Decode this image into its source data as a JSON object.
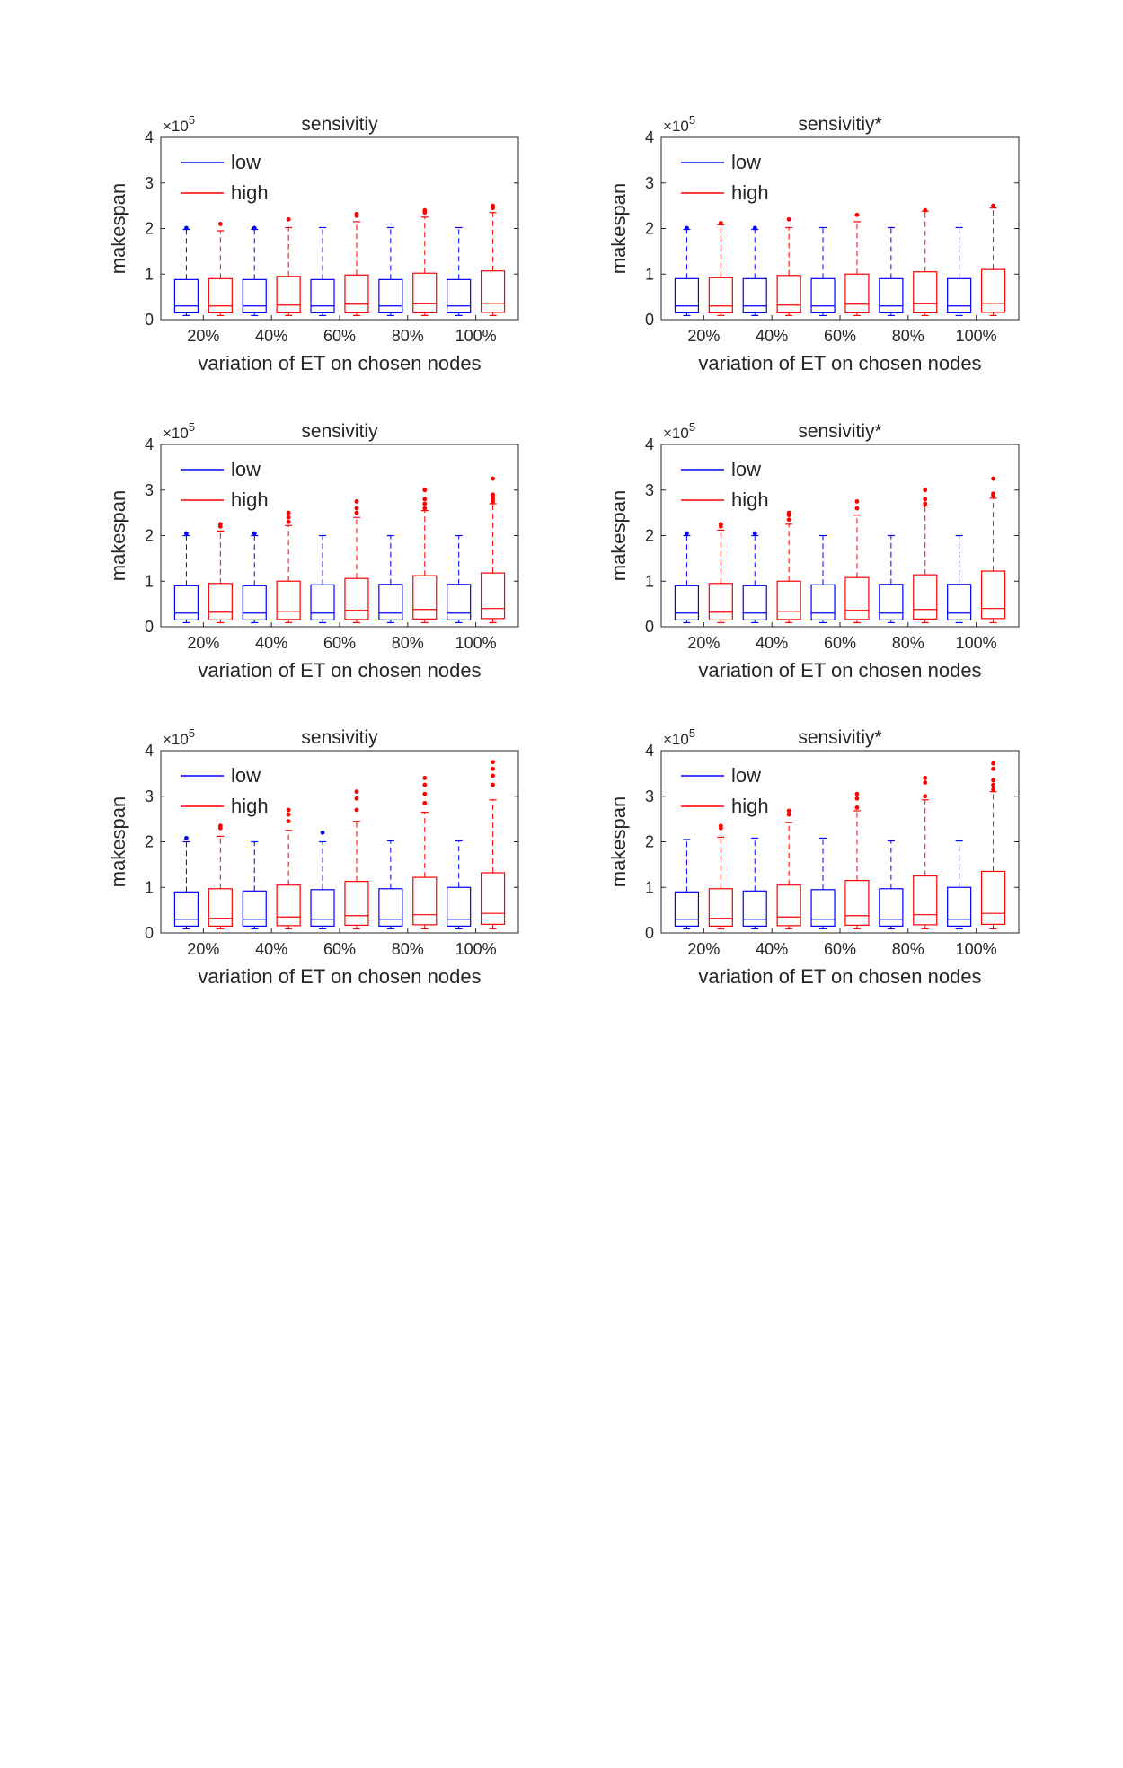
{
  "panels": [
    {
      "type": "box",
      "title": "sensivitiy",
      "ylabel": "makespan",
      "xlabel": "variation of ET on chosen nodes",
      "y_exponent": "×10",
      "y_exponent_power": "5",
      "ylim": [
        0,
        4
      ],
      "yticks": [
        "0",
        "1",
        "2",
        "3",
        "4"
      ],
      "legend": {
        "placement": "top-left",
        "entries": [
          {
            "label": "low",
            "color": "#0000ff"
          },
          {
            "label": "high",
            "color": "#ff0000"
          }
        ]
      },
      "categories": [
        "20%",
        "40%",
        "60%",
        "80%",
        "100%"
      ],
      "boxes": [
        {
          "series": "low",
          "position": 1,
          "min": 0.09,
          "q1": 0.15,
          "median": 0.3,
          "q3": 0.88,
          "whisker_high": 1.98,
          "outliers": [
            2.01
          ]
        },
        {
          "series": "high",
          "position": 2,
          "min": 0.09,
          "q1": 0.15,
          "median": 0.3,
          "q3": 0.9,
          "whisker_high": 1.95,
          "outliers": [
            2.1
          ]
        },
        {
          "series": "low",
          "position": 3,
          "min": 0.09,
          "q1": 0.15,
          "median": 0.3,
          "q3": 0.88,
          "whisker_high": 1.98,
          "outliers": [
            2.01
          ]
        },
        {
          "series": "high",
          "position": 4,
          "min": 0.09,
          "q1": 0.15,
          "median": 0.32,
          "q3": 0.95,
          "whisker_high": 2.02,
          "outliers": [
            2.2
          ]
        },
        {
          "series": "low",
          "position": 5,
          "min": 0.09,
          "q1": 0.15,
          "median": 0.3,
          "q3": 0.88,
          "whisker_high": 2.02,
          "outliers": []
        },
        {
          "series": "high",
          "position": 6,
          "min": 0.09,
          "q1": 0.15,
          "median": 0.34,
          "q3": 0.98,
          "whisker_high": 2.15,
          "outliers": [
            2.28,
            2.32
          ]
        },
        {
          "series": "low",
          "position": 7,
          "min": 0.09,
          "q1": 0.15,
          "median": 0.3,
          "q3": 0.88,
          "whisker_high": 2.02,
          "outliers": []
        },
        {
          "series": "high",
          "position": 8,
          "min": 0.09,
          "q1": 0.15,
          "median": 0.35,
          "q3": 1.02,
          "whisker_high": 2.25,
          "outliers": [
            2.35,
            2.4
          ]
        },
        {
          "series": "low",
          "position": 9,
          "min": 0.09,
          "q1": 0.15,
          "median": 0.3,
          "q3": 0.88,
          "whisker_high": 2.02,
          "outliers": []
        },
        {
          "series": "high",
          "position": 10,
          "min": 0.09,
          "q1": 0.16,
          "median": 0.36,
          "q3": 1.07,
          "whisker_high": 2.35,
          "outliers": [
            2.45,
            2.5
          ]
        }
      ]
    },
    {
      "type": "box",
      "title": "sensivitiy*",
      "ylabel": "makespan",
      "xlabel": "variation of ET on chosen nodes",
      "y_exponent": "×10",
      "y_exponent_power": "5",
      "ylim": [
        0,
        4
      ],
      "yticks": [
        "0",
        "1",
        "2",
        "3",
        "4"
      ],
      "legend": {
        "placement": "top-left",
        "entries": [
          {
            "label": "low",
            "color": "#0000ff"
          },
          {
            "label": "high",
            "color": "#ff0000"
          }
        ]
      },
      "categories": [
        "20%",
        "40%",
        "60%",
        "80%",
        "100%"
      ],
      "boxes": [
        {
          "series": "low",
          "position": 1,
          "min": 0.09,
          "q1": 0.15,
          "median": 0.3,
          "q3": 0.9,
          "whisker_high": 1.98,
          "outliers": [
            2.01
          ]
        },
        {
          "series": "high",
          "position": 2,
          "min": 0.09,
          "q1": 0.15,
          "median": 0.3,
          "q3": 0.92,
          "whisker_high": 2.08,
          "outliers": [
            2.12
          ]
        },
        {
          "series": "low",
          "position": 3,
          "min": 0.09,
          "q1": 0.15,
          "median": 0.3,
          "q3": 0.9,
          "whisker_high": 1.98,
          "outliers": [
            2.01
          ]
        },
        {
          "series": "high",
          "position": 4,
          "min": 0.09,
          "q1": 0.15,
          "median": 0.32,
          "q3": 0.97,
          "whisker_high": 2.02,
          "outliers": [
            2.2
          ]
        },
        {
          "series": "low",
          "position": 5,
          "min": 0.09,
          "q1": 0.15,
          "median": 0.3,
          "q3": 0.9,
          "whisker_high": 2.02,
          "outliers": []
        },
        {
          "series": "high",
          "position": 6,
          "min": 0.09,
          "q1": 0.15,
          "median": 0.34,
          "q3": 1.0,
          "whisker_high": 2.15,
          "outliers": [
            2.3
          ]
        },
        {
          "series": "low",
          "position": 7,
          "min": 0.09,
          "q1": 0.15,
          "median": 0.3,
          "q3": 0.9,
          "whisker_high": 2.02,
          "outliers": []
        },
        {
          "series": "high",
          "position": 8,
          "min": 0.09,
          "q1": 0.15,
          "median": 0.35,
          "q3": 1.05,
          "whisker_high": 2.38,
          "outliers": [
            2.4
          ]
        },
        {
          "series": "low",
          "position": 9,
          "min": 0.09,
          "q1": 0.15,
          "median": 0.3,
          "q3": 0.9,
          "whisker_high": 2.02,
          "outliers": []
        },
        {
          "series": "high",
          "position": 10,
          "min": 0.09,
          "q1": 0.16,
          "median": 0.36,
          "q3": 1.1,
          "whisker_high": 2.45,
          "outliers": [
            2.5
          ]
        }
      ]
    },
    {
      "type": "box",
      "title": "sensivitiy",
      "ylabel": "makespan",
      "xlabel": "variation of ET on chosen nodes",
      "y_exponent": "×10",
      "y_exponent_power": "5",
      "ylim": [
        0,
        4
      ],
      "yticks": [
        "0",
        "1",
        "2",
        "3",
        "4"
      ],
      "legend": {
        "placement": "top-left",
        "entries": [
          {
            "label": "low",
            "color": "#0000ff"
          },
          {
            "label": "high",
            "color": "#ff0000"
          }
        ]
      },
      "categories": [
        "20%",
        "40%",
        "60%",
        "80%",
        "100%"
      ],
      "boxes": [
        {
          "series": "low",
          "position": 1,
          "min": 0.09,
          "q1": 0.15,
          "median": 0.3,
          "q3": 0.9,
          "whisker_high": 2.0,
          "outliers": [
            2.05
          ]
        },
        {
          "series": "high",
          "position": 2,
          "min": 0.09,
          "q1": 0.15,
          "median": 0.32,
          "q3": 0.95,
          "whisker_high": 2.1,
          "outliers": [
            2.2,
            2.25
          ]
        },
        {
          "series": "low",
          "position": 3,
          "min": 0.09,
          "q1": 0.15,
          "median": 0.3,
          "q3": 0.9,
          "whisker_high": 2.0,
          "outliers": [
            2.05
          ]
        },
        {
          "series": "high",
          "position": 4,
          "min": 0.09,
          "q1": 0.16,
          "median": 0.34,
          "q3": 1.0,
          "whisker_high": 2.22,
          "outliers": [
            2.3,
            2.4,
            2.5
          ]
        },
        {
          "series": "low",
          "position": 5,
          "min": 0.09,
          "q1": 0.15,
          "median": 0.3,
          "q3": 0.92,
          "whisker_high": 2.0,
          "outliers": []
        },
        {
          "series": "high",
          "position": 6,
          "min": 0.09,
          "q1": 0.16,
          "median": 0.36,
          "q3": 1.06,
          "whisker_high": 2.4,
          "outliers": [
            2.5,
            2.6,
            2.75
          ]
        },
        {
          "series": "low",
          "position": 7,
          "min": 0.09,
          "q1": 0.15,
          "median": 0.3,
          "q3": 0.93,
          "whisker_high": 2.0,
          "outliers": []
        },
        {
          "series": "high",
          "position": 8,
          "min": 0.09,
          "q1": 0.17,
          "median": 0.38,
          "q3": 1.12,
          "whisker_high": 2.55,
          "outliers": [
            2.6,
            2.7,
            2.8,
            3.0
          ]
        },
        {
          "series": "low",
          "position": 9,
          "min": 0.09,
          "q1": 0.15,
          "median": 0.3,
          "q3": 0.93,
          "whisker_high": 2.0,
          "outliers": []
        },
        {
          "series": "high",
          "position": 10,
          "min": 0.09,
          "q1": 0.18,
          "median": 0.4,
          "q3": 1.18,
          "whisker_high": 2.7,
          "outliers": [
            2.75,
            2.8,
            2.85,
            2.9,
            3.25
          ]
        }
      ]
    },
    {
      "type": "box",
      "title": "sensivitiy*",
      "ylabel": "makespan",
      "xlabel": "variation of ET on chosen nodes",
      "y_exponent": "×10",
      "y_exponent_power": "5",
      "ylim": [
        0,
        4
      ],
      "yticks": [
        "0",
        "1",
        "2",
        "3",
        "4"
      ],
      "legend": {
        "placement": "top-left",
        "entries": [
          {
            "label": "low",
            "color": "#0000ff"
          },
          {
            "label": "high",
            "color": "#ff0000"
          }
        ]
      },
      "categories": [
        "20%",
        "40%",
        "60%",
        "80%",
        "100%"
      ],
      "boxes": [
        {
          "series": "low",
          "position": 1,
          "min": 0.09,
          "q1": 0.15,
          "median": 0.3,
          "q3": 0.9,
          "whisker_high": 2.0,
          "outliers": [
            2.05
          ]
        },
        {
          "series": "high",
          "position": 2,
          "min": 0.09,
          "q1": 0.15,
          "median": 0.32,
          "q3": 0.95,
          "whisker_high": 2.12,
          "outliers": [
            2.2,
            2.25
          ]
        },
        {
          "series": "low",
          "position": 3,
          "min": 0.09,
          "q1": 0.15,
          "median": 0.3,
          "q3": 0.9,
          "whisker_high": 2.0,
          "outliers": [
            2.05
          ]
        },
        {
          "series": "high",
          "position": 4,
          "min": 0.09,
          "q1": 0.16,
          "median": 0.34,
          "q3": 1.0,
          "whisker_high": 2.25,
          "outliers": [
            2.35,
            2.45,
            2.5
          ]
        },
        {
          "series": "low",
          "position": 5,
          "min": 0.09,
          "q1": 0.15,
          "median": 0.3,
          "q3": 0.92,
          "whisker_high": 2.0,
          "outliers": []
        },
        {
          "series": "high",
          "position": 6,
          "min": 0.09,
          "q1": 0.16,
          "median": 0.36,
          "q3": 1.08,
          "whisker_high": 2.45,
          "outliers": [
            2.6,
            2.75
          ]
        },
        {
          "series": "low",
          "position": 7,
          "min": 0.09,
          "q1": 0.15,
          "median": 0.3,
          "q3": 0.93,
          "whisker_high": 2.0,
          "outliers": []
        },
        {
          "series": "high",
          "position": 8,
          "min": 0.09,
          "q1": 0.17,
          "median": 0.38,
          "q3": 1.14,
          "whisker_high": 2.65,
          "outliers": [
            2.7,
            2.8,
            3.0
          ]
        },
        {
          "series": "low",
          "position": 9,
          "min": 0.09,
          "q1": 0.15,
          "median": 0.3,
          "q3": 0.93,
          "whisker_high": 2.0,
          "outliers": []
        },
        {
          "series": "high",
          "position": 10,
          "min": 0.09,
          "q1": 0.18,
          "median": 0.4,
          "q3": 1.22,
          "whisker_high": 2.82,
          "outliers": [
            2.88,
            2.92,
            3.25
          ]
        }
      ]
    },
    {
      "type": "box",
      "title": "sensivitiy",
      "ylabel": "makespan",
      "xlabel": "variation of ET on chosen nodes",
      "y_exponent": "×10",
      "y_exponent_power": "5",
      "ylim": [
        0,
        4
      ],
      "yticks": [
        "0",
        "1",
        "2",
        "3",
        "4"
      ],
      "legend": {
        "placement": "top-left",
        "entries": [
          {
            "label": "low",
            "color": "#0000ff"
          },
          {
            "label": "high",
            "color": "#ff0000"
          }
        ]
      },
      "categories": [
        "20%",
        "40%",
        "60%",
        "80%",
        "100%"
      ],
      "boxes": [
        {
          "series": "low",
          "position": 1,
          "min": 0.09,
          "q1": 0.15,
          "median": 0.3,
          "q3": 0.9,
          "whisker_high": 2.0,
          "outliers": [
            2.08
          ]
        },
        {
          "series": "high",
          "position": 2,
          "min": 0.09,
          "q1": 0.15,
          "median": 0.32,
          "q3": 0.97,
          "whisker_high": 2.12,
          "outliers": [
            2.3,
            2.35
          ]
        },
        {
          "series": "low",
          "position": 3,
          "min": 0.09,
          "q1": 0.15,
          "median": 0.3,
          "q3": 0.92,
          "whisker_high": 2.0,
          "outliers": []
        },
        {
          "series": "high",
          "position": 4,
          "min": 0.09,
          "q1": 0.16,
          "median": 0.35,
          "q3": 1.05,
          "whisker_high": 2.25,
          "outliers": [
            2.45,
            2.6,
            2.7
          ]
        },
        {
          "series": "low",
          "position": 5,
          "min": 0.09,
          "q1": 0.15,
          "median": 0.3,
          "q3": 0.95,
          "whisker_high": 2.0,
          "outliers": [
            2.2
          ]
        },
        {
          "series": "high",
          "position": 6,
          "min": 0.09,
          "q1": 0.17,
          "median": 0.38,
          "q3": 1.13,
          "whisker_high": 2.45,
          "outliers": [
            2.7,
            2.95,
            3.1
          ]
        },
        {
          "series": "low",
          "position": 7,
          "min": 0.09,
          "q1": 0.15,
          "median": 0.3,
          "q3": 0.97,
          "whisker_high": 2.02,
          "outliers": []
        },
        {
          "series": "high",
          "position": 8,
          "min": 0.09,
          "q1": 0.18,
          "median": 0.4,
          "q3": 1.22,
          "whisker_high": 2.65,
          "outliers": [
            2.85,
            3.05,
            3.25,
            3.4
          ]
        },
        {
          "series": "low",
          "position": 9,
          "min": 0.09,
          "q1": 0.15,
          "median": 0.3,
          "q3": 1.0,
          "whisker_high": 2.02,
          "outliers": []
        },
        {
          "series": "high",
          "position": 10,
          "min": 0.09,
          "q1": 0.19,
          "median": 0.43,
          "q3": 1.32,
          "whisker_high": 2.92,
          "outliers": [
            3.25,
            3.45,
            3.6,
            3.75
          ]
        }
      ]
    },
    {
      "type": "box",
      "title": "sensivitiy*",
      "ylabel": "makespan",
      "xlabel": "variation of ET on chosen nodes",
      "y_exponent": "×10",
      "y_exponent_power": "5",
      "ylim": [
        0,
        4
      ],
      "yticks": [
        "0",
        "1",
        "2",
        "3",
        "4"
      ],
      "legend": {
        "placement": "top-left",
        "entries": [
          {
            "label": "low",
            "color": "#0000ff"
          },
          {
            "label": "high",
            "color": "#ff0000"
          }
        ]
      },
      "categories": [
        "20%",
        "40%",
        "60%",
        "80%",
        "100%"
      ],
      "boxes": [
        {
          "series": "low",
          "position": 1,
          "min": 0.09,
          "q1": 0.15,
          "median": 0.3,
          "q3": 0.9,
          "whisker_high": 2.05,
          "outliers": []
        },
        {
          "series": "high",
          "position": 2,
          "min": 0.09,
          "q1": 0.15,
          "median": 0.32,
          "q3": 0.97,
          "whisker_high": 2.1,
          "outliers": [
            2.3,
            2.35
          ]
        },
        {
          "series": "low",
          "position": 3,
          "min": 0.09,
          "q1": 0.15,
          "median": 0.3,
          "q3": 0.92,
          "whisker_high": 2.08,
          "outliers": []
        },
        {
          "series": "high",
          "position": 4,
          "min": 0.09,
          "q1": 0.16,
          "median": 0.35,
          "q3": 1.05,
          "whisker_high": 2.42,
          "outliers": [
            2.6,
            2.68
          ]
        },
        {
          "series": "low",
          "position": 5,
          "min": 0.09,
          "q1": 0.15,
          "median": 0.3,
          "q3": 0.95,
          "whisker_high": 2.08,
          "outliers": []
        },
        {
          "series": "high",
          "position": 6,
          "min": 0.09,
          "q1": 0.17,
          "median": 0.38,
          "q3": 1.15,
          "whisker_high": 2.68,
          "outliers": [
            2.75,
            2.95,
            3.05
          ]
        },
        {
          "series": "low",
          "position": 7,
          "min": 0.09,
          "q1": 0.15,
          "median": 0.3,
          "q3": 0.97,
          "whisker_high": 2.02,
          "outliers": []
        },
        {
          "series": "high",
          "position": 8,
          "min": 0.09,
          "q1": 0.18,
          "median": 0.4,
          "q3": 1.25,
          "whisker_high": 2.92,
          "outliers": [
            3.0,
            3.3,
            3.4
          ]
        },
        {
          "series": "low",
          "position": 9,
          "min": 0.09,
          "q1": 0.15,
          "median": 0.3,
          "q3": 1.0,
          "whisker_high": 2.02,
          "outliers": []
        },
        {
          "series": "high",
          "position": 10,
          "min": 0.09,
          "q1": 0.19,
          "median": 0.43,
          "q3": 1.35,
          "whisker_high": 3.1,
          "outliers": [
            3.15,
            3.25,
            3.35,
            3.6,
            3.72
          ]
        }
      ]
    }
  ]
}
